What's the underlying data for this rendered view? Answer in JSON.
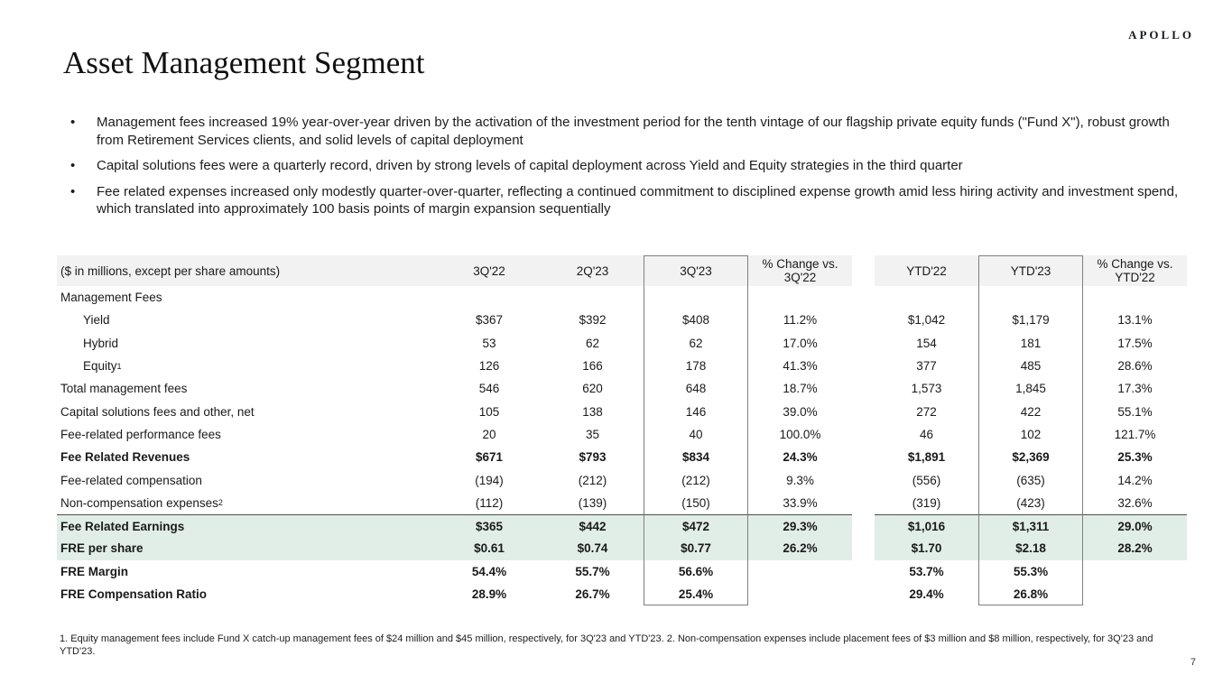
{
  "logo": "APOLLO",
  "title": "Asset Management Segment",
  "bullets": [
    "Management fees increased 19% year-over-year driven by the activation of the investment period for the tenth vintage of our flagship private equity funds (\"Fund X\"), robust growth from Retirement Services clients, and solid levels of capital deployment",
    "Capital solutions fees were a quarterly record, driven by strong levels of capital deployment across Yield and Equity strategies in the third quarter",
    "Fee related expenses increased only modestly quarter-over-quarter, reflecting a continued commitment to disciplined expense growth amid less hiring activity and investment spend, which translated into approximately 100 basis points of margin expansion sequentially"
  ],
  "table": {
    "units_note": "($ in millions, except per share amounts)",
    "columns": [
      "3Q'22",
      "2Q'23",
      "3Q'23",
      "% Change vs. 3Q'22",
      "YTD'22",
      "YTD'23",
      "% Change vs. YTD'22"
    ],
    "boxed_column_indexes": [
      2,
      5
    ],
    "rows": [
      {
        "label": "Management Fees",
        "values": [
          "",
          "",
          "",
          "",
          "",
          "",
          ""
        ]
      },
      {
        "label": "Yield",
        "indent": true,
        "values": [
          "$367",
          "$392",
          "$408",
          "11.2%",
          "$1,042",
          "$1,179",
          "13.1%"
        ]
      },
      {
        "label": "Hybrid",
        "indent": true,
        "values": [
          "53",
          "62",
          "62",
          "17.0%",
          "154",
          "181",
          "17.5%"
        ]
      },
      {
        "label": "Equity",
        "sup": "1",
        "indent": true,
        "values": [
          "126",
          "166",
          "178",
          "41.3%",
          "377",
          "485",
          "28.6%"
        ]
      },
      {
        "label": "Total management fees",
        "values": [
          "546",
          "620",
          "648",
          "18.7%",
          "1,573",
          "1,845",
          "17.3%"
        ]
      },
      {
        "label": "Capital solutions fees and other, net",
        "values": [
          "105",
          "138",
          "146",
          "39.0%",
          "272",
          "422",
          "55.1%"
        ]
      },
      {
        "label": "Fee-related performance fees",
        "values": [
          "20",
          "35",
          "40",
          "100.0%",
          "46",
          "102",
          "121.7%"
        ]
      },
      {
        "label": "Fee Related Revenues",
        "bold": true,
        "values": [
          "$671",
          "$793",
          "$834",
          "24.3%",
          "$1,891",
          "$2,369",
          "25.3%"
        ]
      },
      {
        "label": "Fee-related compensation",
        "values": [
          "(194)",
          "(212)",
          "(212)",
          "9.3%",
          "(556)",
          "(635)",
          "14.2%"
        ]
      },
      {
        "label": "Non-compensation expenses",
        "sup": "2",
        "values": [
          "(112)",
          "(139)",
          "(150)",
          "33.9%",
          "(319)",
          "(423)",
          "32.6%"
        ]
      },
      {
        "label": "Fee Related Earnings",
        "bold": true,
        "highlight": true,
        "rule": true,
        "values": [
          "$365",
          "$442",
          "$472",
          "29.3%",
          "$1,016",
          "$1,311",
          "29.0%"
        ]
      },
      {
        "label": "FRE per share",
        "bold": true,
        "highlight": true,
        "values": [
          "$0.61",
          "$0.74",
          "$0.77",
          "26.2%",
          "$1.70",
          "$2.18",
          "28.2%"
        ]
      },
      {
        "label": "FRE Margin",
        "bold": true,
        "values": [
          "54.4%",
          "55.7%",
          "56.6%",
          "",
          "53.7%",
          "55.3%",
          ""
        ]
      },
      {
        "label": "FRE Compensation Ratio",
        "bold": true,
        "values": [
          "28.9%",
          "26.7%",
          "25.4%",
          "",
          "29.4%",
          "26.8%",
          ""
        ]
      }
    ]
  },
  "footnote": "1. Equity management fees include Fund X catch-up management fees of $24 million and $45 million, respectively, for 3Q'23 and YTD'23. 2. Non-compensation expenses include placement fees of $3 million and $8 million, respectively, for 3Q'23 and YTD'23.",
  "page_number": "7",
  "colors": {
    "header_bg": "#f2f2f2",
    "green_bg": "#e1eee8",
    "box_border": "#7f7f7f",
    "rule_color": "#4d4d4d"
  }
}
